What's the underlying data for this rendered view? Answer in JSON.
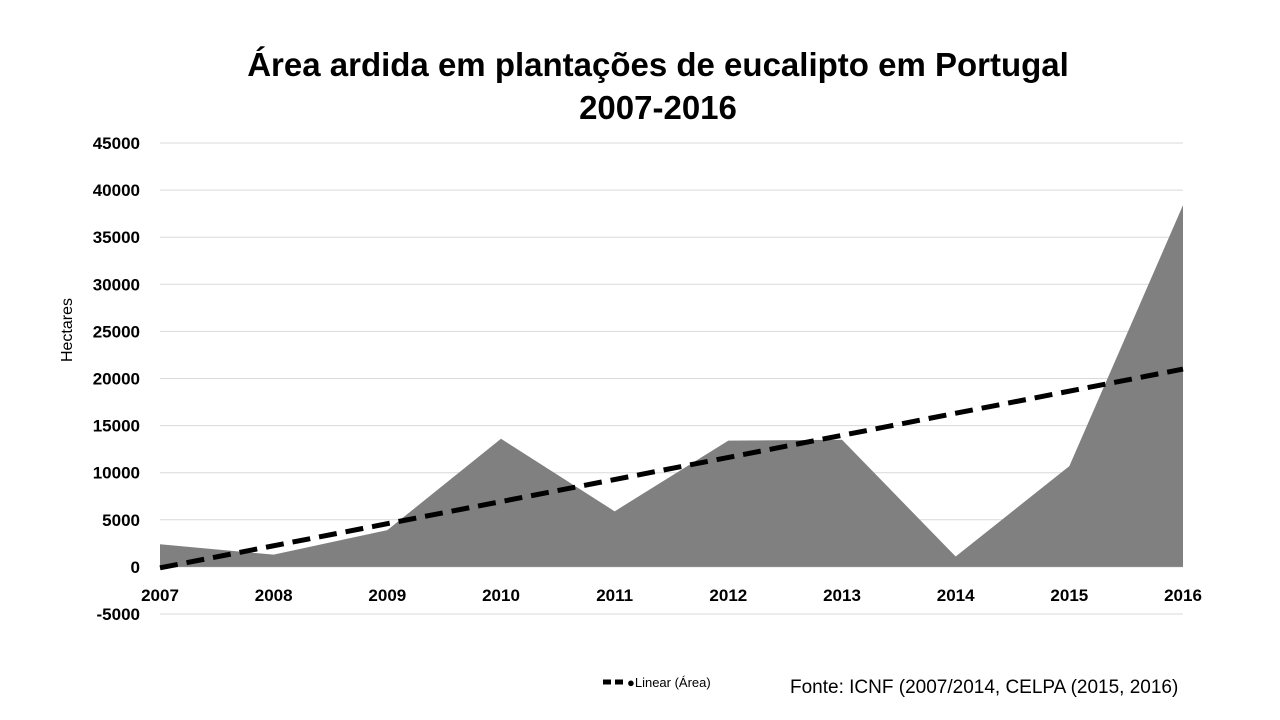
{
  "chart_data": {
    "type": "area",
    "title_line1": "Área ardida em plantações de eucalipto em Portugal",
    "title_line2": "2007-2016",
    "ylabel": "Hectares",
    "xlabel": "",
    "ylim": [
      -5000,
      45000
    ],
    "yticks": [
      -5000,
      0,
      5000,
      10000,
      15000,
      20000,
      25000,
      30000,
      35000,
      40000,
      45000
    ],
    "categories": [
      "2007",
      "2008",
      "2009",
      "2010",
      "2011",
      "2012",
      "2013",
      "2014",
      "2015",
      "2016"
    ],
    "series": [
      {
        "name": "Área",
        "values": [
          2400,
          1300,
          3900,
          13600,
          5900,
          13400,
          13500,
          1100,
          10700,
          38400
        ],
        "color": "#808080"
      }
    ],
    "trendline": {
      "name": "Linear (Área)",
      "start": -100,
      "end": 21000,
      "color": "#000000"
    },
    "grid": true,
    "legend": "bottom-center",
    "legend_label": "●Linear (Área)",
    "source": "Fonte: ICNF (2007/2014, CELPA (2015, 2016)"
  }
}
